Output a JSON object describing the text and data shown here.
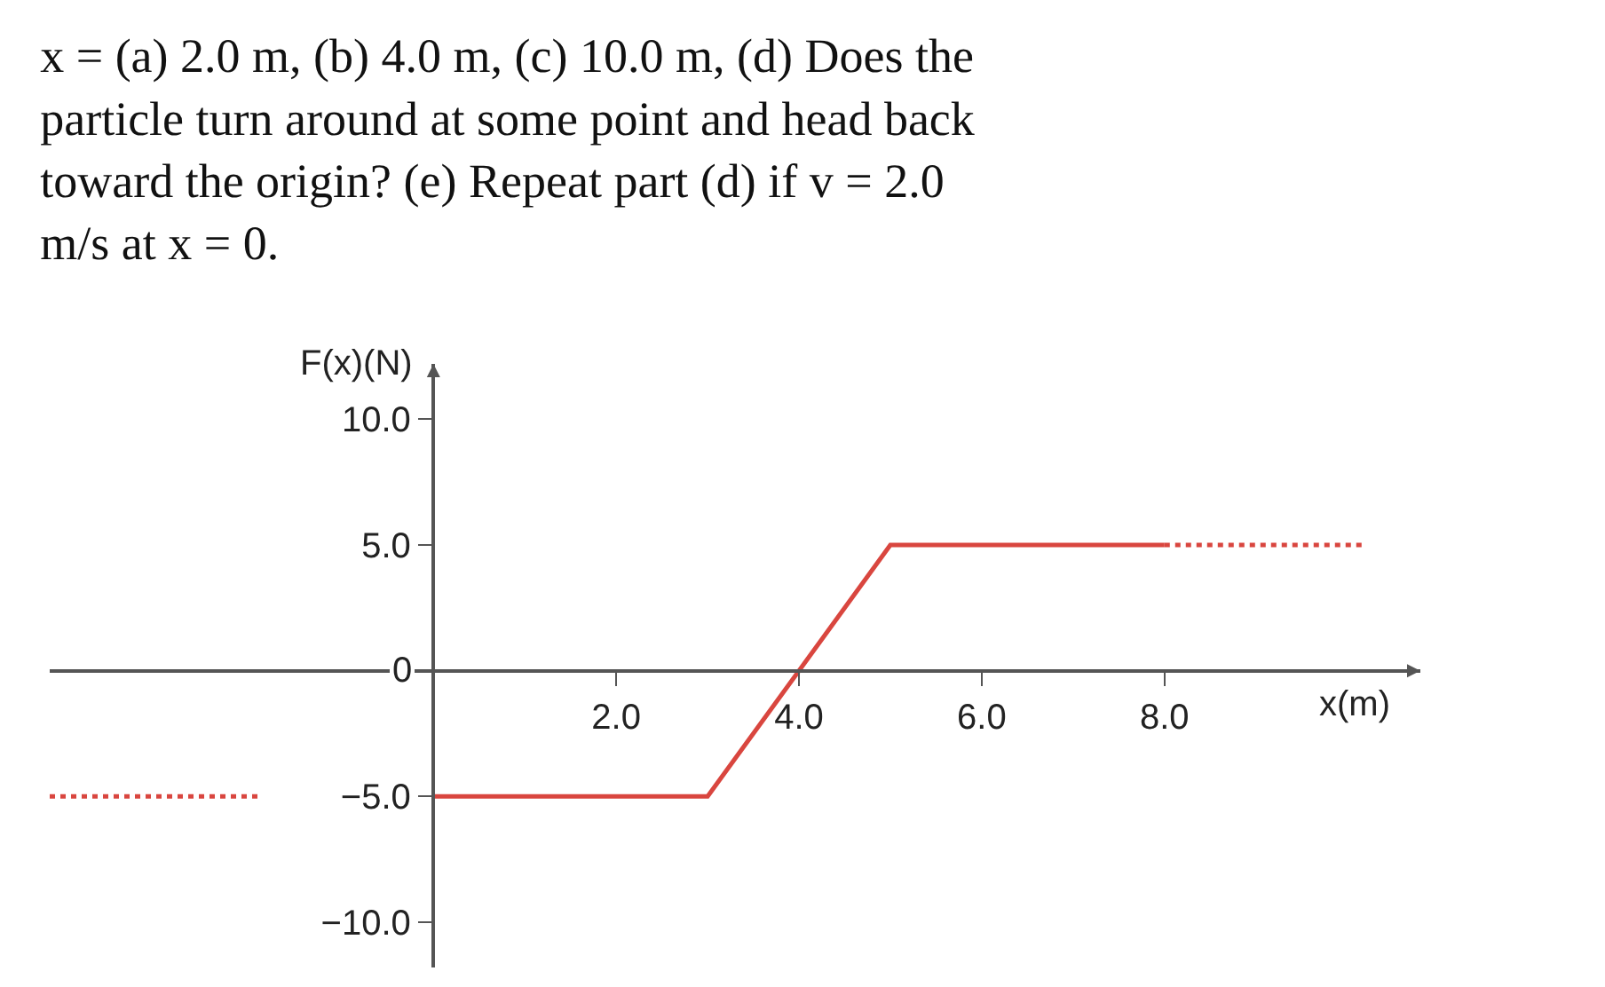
{
  "chart_data": {
    "type": "line",
    "title": "x = (a) 2.0 m, (b) 4.0 m, (c) 10.0 m, (d) Does the particle turn around at some point and head back toward the origin? (e) Repeat part (d) if v = 2.0 m/s at x = 0.",
    "xlabel": "x(m)",
    "ylabel": "F(x)(N)",
    "series": [
      {
        "color": "#d9463f",
        "x": [
          0,
          3.0,
          5.0,
          8.0
        ],
        "values": [
          -5,
          -5,
          5,
          5
        ],
        "line_style": "solid"
      },
      {
        "color": "#d9463f",
        "x": [
          -4.2,
          -1.9
        ],
        "values": [
          -5,
          -5
        ],
        "line_style": "dotted"
      },
      {
        "color": "#d9463f",
        "x": [
          8.0,
          10.2
        ],
        "values": [
          5,
          5
        ],
        "line_style": "dotted"
      }
    ],
    "xlim": [
      -4.2,
      10.8
    ],
    "ylim": [
      -11.8,
      12.2
    ],
    "xticks": [
      {
        "value": 0,
        "label": null
      },
      {
        "value": 2,
        "label": "2.0"
      },
      {
        "value": 4,
        "label": "4.0"
      },
      {
        "value": 6,
        "label": "6.0"
      },
      {
        "value": 8,
        "label": "8.0"
      }
    ],
    "yticks": [
      {
        "value": -10,
        "label": "−10.0"
      },
      {
        "value": -5,
        "label": "−5.0"
      },
      0,
      {
        "value": 5,
        "label": "5.0"
      },
      {
        "value": 10,
        "label": "10.0"
      }
    ],
    "marker": "none"
  }
}
